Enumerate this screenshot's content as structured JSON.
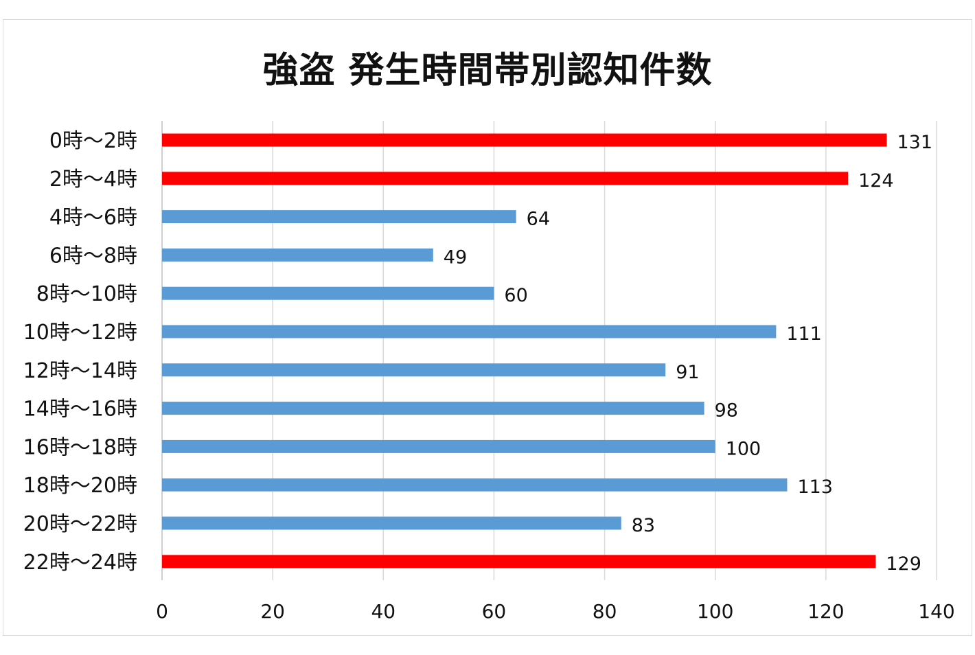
{
  "chart_data": {
    "type": "bar",
    "orientation": "horizontal",
    "title": "強盗 発生時間帯別認知件数",
    "categories": [
      "0時～2時",
      "2時～4時",
      "4時～6時",
      "6時～8時",
      "8時～10時",
      "10時～12時",
      "12時～14時",
      "14時～16時",
      "16時～18時",
      "18時～20時",
      "20時～22時",
      "22時～24時"
    ],
    "values": [
      131,
      124,
      64,
      49,
      60,
      111,
      91,
      98,
      100,
      113,
      83,
      129
    ],
    "highlighted": [
      true,
      true,
      false,
      false,
      false,
      false,
      false,
      false,
      false,
      false,
      false,
      true
    ],
    "xlim": [
      0,
      140
    ],
    "xticks": [
      "0",
      "20",
      "40",
      "60",
      "80",
      "100",
      "120",
      "140"
    ],
    "grid": "vertical",
    "legend": "none",
    "data_labels": true,
    "colors": {
      "highlight": "#ff0000",
      "normal": "#5b9bd5",
      "grid": "#d9d9d9",
      "axis": "#bfbfbf"
    }
  }
}
